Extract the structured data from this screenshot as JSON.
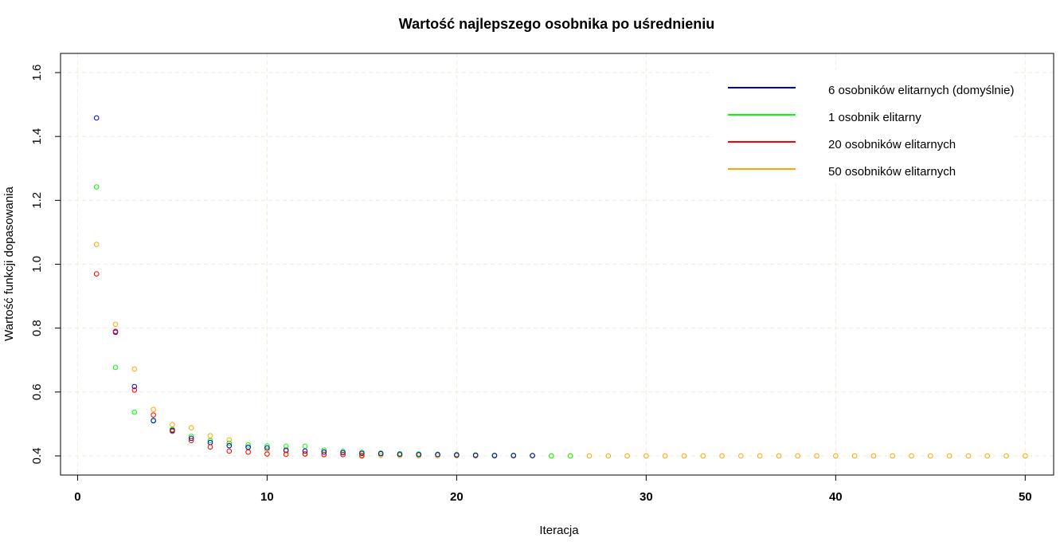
{
  "chart_data": {
    "type": "scatter",
    "title": "Wartość najlepszego osobnika po uśrednieniu",
    "xlabel": "Iteracja",
    "ylabel": "Wartość funkcji dopasowania",
    "xlim": [
      -0.9,
      51.5
    ],
    "ylim": [
      0.34,
      1.66
    ],
    "xticks": [
      0,
      10,
      20,
      30,
      40,
      50
    ],
    "yticks": [
      0.4,
      0.6,
      0.8,
      1.0,
      1.2,
      1.4,
      1.6
    ],
    "ytick_labels": [
      "0.4",
      "0.6",
      "0.8",
      "1.0",
      "1.2",
      "1.4",
      "1.6"
    ],
    "grid": true,
    "grid_color": "#f0ecd6",
    "legend_position": "top-right",
    "series": [
      {
        "name": "50 osobników elitarnych",
        "color": "#ffa500",
        "x": [
          1,
          2,
          3,
          4,
          5,
          6,
          7,
          8,
          9,
          10,
          11,
          12,
          13,
          14,
          15,
          16,
          17,
          18,
          19,
          20,
          21,
          22,
          23,
          24,
          25,
          26,
          27,
          28,
          29,
          30,
          31,
          32,
          33,
          34,
          35,
          36,
          37,
          38,
          39,
          40,
          41,
          42,
          43,
          44,
          45,
          46,
          47,
          48,
          49,
          50
        ],
        "y": [
          1.062,
          0.812,
          0.672,
          0.545,
          0.498,
          0.488,
          0.463,
          0.45,
          0.427,
          0.418,
          0.415,
          0.407,
          0.405,
          0.404,
          0.403,
          0.402,
          0.401,
          0.4,
          0.4,
          0.4,
          0.4,
          0.4,
          0.4,
          0.4,
          0.4,
          0.4,
          0.4,
          0.4,
          0.4,
          0.4,
          0.4,
          0.4,
          0.4,
          0.4,
          0.4,
          0.4,
          0.4,
          0.4,
          0.4,
          0.4,
          0.4,
          0.4,
          0.4,
          0.4,
          0.4,
          0.4,
          0.4,
          0.4,
          0.4,
          0.4
        ]
      },
      {
        "name": "1 osobnik elitarny",
        "color": "#00ff00",
        "x": [
          1,
          2,
          3,
          4,
          5,
          6,
          7,
          8,
          9,
          10,
          11,
          12,
          13,
          14,
          15,
          16,
          17,
          18,
          19,
          20,
          21,
          22,
          23,
          24,
          25,
          26
        ],
        "y": [
          1.242,
          0.677,
          0.537,
          0.511,
          0.483,
          0.461,
          0.448,
          0.44,
          0.434,
          0.431,
          0.43,
          0.43,
          0.418,
          0.414,
          0.411,
          0.409,
          0.407,
          0.406,
          0.405,
          0.404,
          0.403,
          0.402,
          0.402,
          0.401,
          0.4,
          0.4
        ]
      },
      {
        "name": "6 osobników elitarnych (domyślnie)",
        "color": "#0000cd",
        "x": [
          1,
          2,
          3,
          4,
          5,
          6,
          7,
          8,
          9,
          10,
          11,
          12,
          13,
          14,
          15,
          16,
          17,
          18,
          19,
          20,
          21,
          22,
          23,
          24
        ],
        "y": [
          1.458,
          0.787,
          0.617,
          0.51,
          0.48,
          0.455,
          0.442,
          0.432,
          0.427,
          0.425,
          0.418,
          0.415,
          0.412,
          0.41,
          0.408,
          0.407,
          0.405,
          0.404,
          0.404,
          0.403,
          0.402,
          0.401,
          0.401,
          0.401
        ]
      },
      {
        "name": "20 osobników elitarnych",
        "color": "#ff0000",
        "x": [
          1,
          2,
          3,
          4,
          5,
          6,
          7,
          8,
          9,
          10,
          11,
          12,
          13,
          14,
          15
        ],
        "y": [
          0.97,
          0.79,
          0.606,
          0.528,
          0.477,
          0.448,
          0.428,
          0.415,
          0.412,
          0.406,
          0.405,
          0.406,
          0.404,
          0.404,
          0.4
        ]
      }
    ],
    "legend": [
      {
        "name": "6 osobników elitarnych (domyślnie)",
        "color": "#0000cd"
      },
      {
        "name": "1 osobnik elitarny",
        "color": "#00ff00"
      },
      {
        "name": "20 osobników elitarnych",
        "color": "#ff0000"
      },
      {
        "name": "50 osobników elitarnych",
        "color": "#ffa500"
      }
    ]
  }
}
